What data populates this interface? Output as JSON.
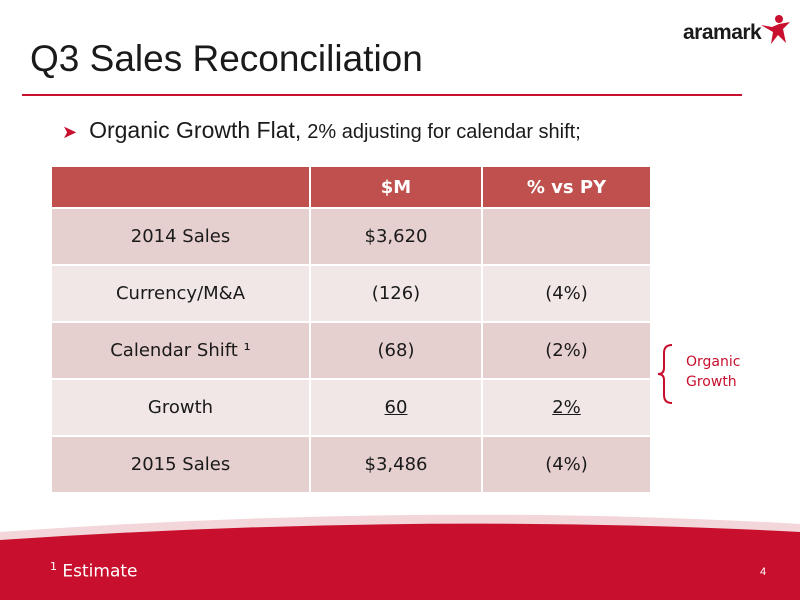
{
  "title": "Q3 Sales Reconciliation",
  "logo": {
    "text": "aramark",
    "icon": "aramark-star-figure-icon"
  },
  "bullet": {
    "arrow_icon": "arrow-bullet-icon",
    "main": "Organic Growth Flat,",
    "sub": "2% adjusting for calendar shift;"
  },
  "table": {
    "headers": [
      "",
      "$M",
      "% vs PY"
    ],
    "rows": [
      {
        "label": "2014 Sales",
        "value": "$3,620",
        "pct": ""
      },
      {
        "label": "Currency/M&A",
        "value": "(126)",
        "pct": "(4%)"
      },
      {
        "label": "Calendar Shift ¹",
        "value": "(68)",
        "pct": "(2%)"
      },
      {
        "label": "Growth",
        "value": "60",
        "pct": "2%"
      },
      {
        "label": "2015 Sales",
        "value": "$3,486",
        "pct": "(4%)"
      }
    ]
  },
  "annotation": {
    "line1": "Organic",
    "line2": "Growth"
  },
  "footnote": {
    "mark": "1",
    "text": "Estimate"
  },
  "page_number": "4",
  "colors": {
    "accent": "#c8102e",
    "header": "#c0504d",
    "row_odd": "#e6cfcf",
    "row_even": "#f1e7e7"
  }
}
